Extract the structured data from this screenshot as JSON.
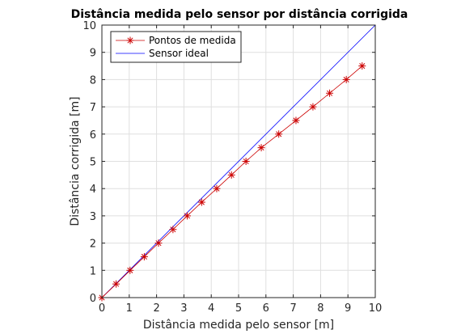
{
  "chart_data": {
    "type": "line",
    "title": "Distância medida pelo sensor por distância corrigida",
    "xlabel": "Distância medida pelo sensor [m]",
    "ylabel": "Distância corrigida [m]",
    "xlim": [
      0,
      10
    ],
    "ylim": [
      0,
      10
    ],
    "xticks": [
      "0",
      "1",
      "2",
      "3",
      "4",
      "5",
      "6",
      "7",
      "8",
      "9",
      "10"
    ],
    "yticks": [
      "0",
      "1",
      "2",
      "3",
      "4",
      "5",
      "6",
      "7",
      "8",
      "9",
      "10"
    ],
    "grid": true,
    "legend_position": "top-left",
    "series": [
      {
        "name": "Pontos de medida",
        "color": "#cc0000",
        "marker": "asterisk",
        "x": [
          0,
          0.52,
          1.03,
          1.55,
          2.07,
          2.6,
          3.12,
          3.65,
          4.2,
          4.74,
          5.27,
          5.83,
          6.47,
          7.1,
          7.72,
          8.33,
          8.94,
          9.52
        ],
        "y": [
          0,
          0.5,
          1.0,
          1.5,
          2.0,
          2.5,
          3.0,
          3.5,
          4.0,
          4.5,
          5.0,
          5.5,
          6.0,
          6.5,
          7.0,
          7.5,
          8.0,
          8.5
        ]
      },
      {
        "name": "Sensor ideal",
        "color": "#0000ff",
        "marker": "none",
        "x": [
          0,
          10
        ],
        "y": [
          0,
          10
        ]
      }
    ]
  }
}
